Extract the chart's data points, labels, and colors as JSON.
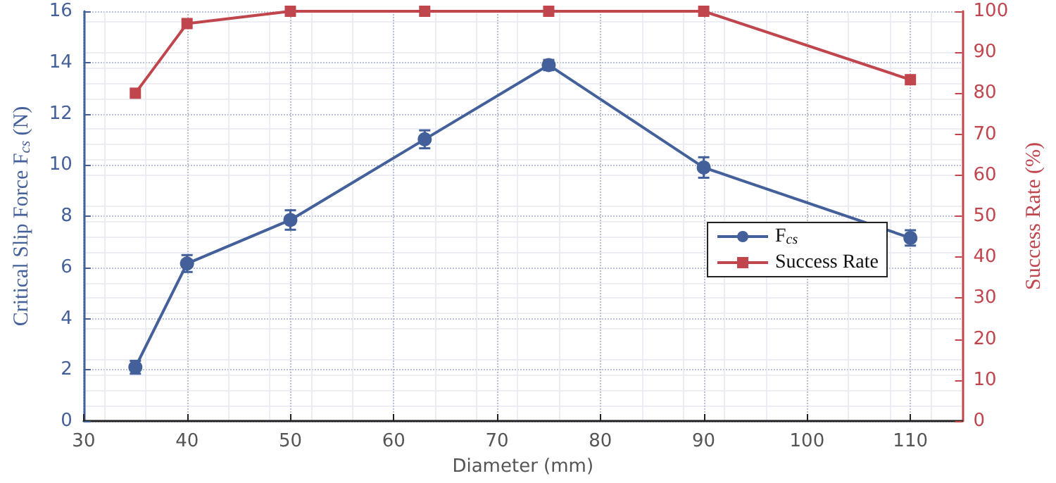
{
  "chart_data": {
    "type": "line",
    "xlabel": "Diameter (mm)",
    "ylabel": "Critical Slip Force F$_{cs}$ (N)",
    "y2label": "Success Rate (%)",
    "x": [
      35,
      40,
      50,
      63,
      75,
      90,
      110
    ],
    "series": [
      {
        "name": "F$_{cs}$",
        "color": "#44609a",
        "marker": "circle",
        "values": [
          2.1,
          6.15,
          7.85,
          11,
          13.9,
          9.9,
          7.15
        ],
        "errors": [
          0.25,
          0.33,
          0.38,
          0.35,
          0.2,
          0.4,
          0.3
        ]
      },
      {
        "name": "Success Rate",
        "color": "#c0454d",
        "marker": "square",
        "axis": "y2",
        "values": [
          80,
          97,
          100,
          100,
          100,
          100,
          83.3
        ]
      }
    ],
    "xlim": [
      30,
      115
    ],
    "xticks": [
      30,
      40,
      50,
      60,
      70,
      80,
      90,
      100,
      110
    ],
    "ylim": [
      0,
      16
    ],
    "yticks": [
      0,
      2,
      4,
      6,
      8,
      10,
      12,
      14,
      16
    ],
    "y2lim": [
      0,
      100
    ],
    "y2ticks": [
      0,
      10,
      20,
      30,
      40,
      50,
      60,
      70,
      80,
      90,
      100
    ],
    "grid": true,
    "legend": "right",
    "line_style": "solid"
  }
}
